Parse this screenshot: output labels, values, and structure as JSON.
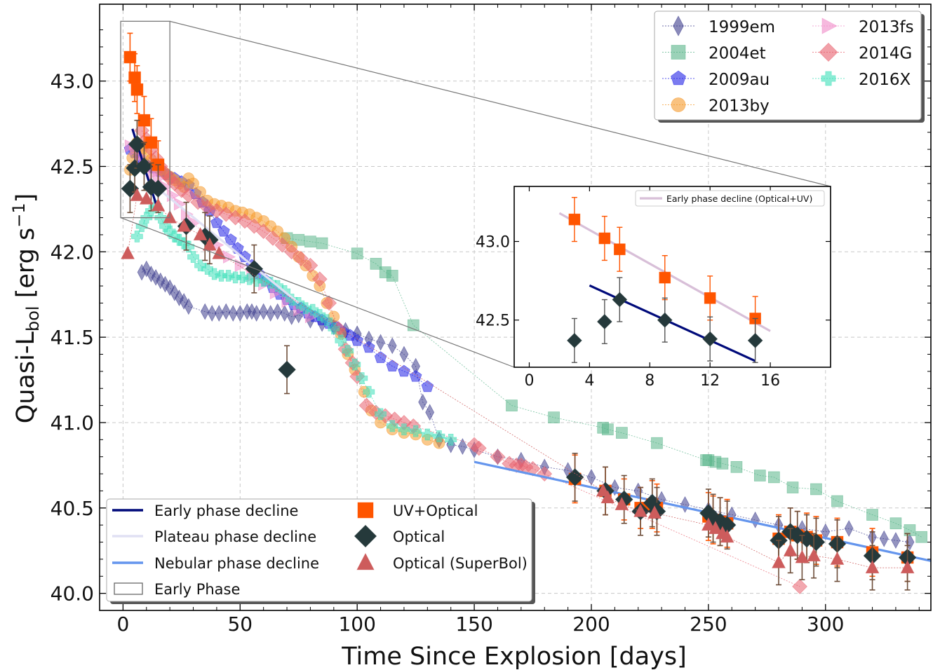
{
  "chart_data": {
    "type": "scatter",
    "xlabel": "Time Since Explosion [days]",
    "ylabel_main": "Quasi-L",
    "ylabel_sub": "bol",
    "ylabel_unit": " [erg s",
    "ylabel_exp": "−1",
    "ylabel_close": "]",
    "xlim": [
      -10,
      345
    ],
    "ylim": [
      39.9,
      43.45
    ],
    "xticks": [
      0,
      50,
      100,
      150,
      200,
      250,
      300
    ],
    "yticks": [
      40.0,
      40.5,
      41.0,
      41.5,
      42.0,
      42.5,
      43.0
    ],
    "grid": true,
    "comparison_series": [
      {
        "name": "1999em",
        "color": "#3c3c8c",
        "marker": "thin-diamond",
        "x": [
          8,
          10,
          12,
          14,
          16,
          18,
          20,
          22,
          24,
          26,
          28,
          35,
          38,
          41,
          44,
          47,
          50,
          53,
          55,
          57,
          60,
          63,
          66,
          69,
          72,
          75,
          80,
          85,
          90,
          95,
          100,
          105,
          110,
          115,
          120,
          125,
          128,
          131,
          135,
          140,
          145,
          150,
          160,
          170,
          180,
          190,
          200,
          210,
          220,
          230,
          240,
          250,
          260,
          270,
          280,
          290,
          300,
          310,
          320,
          325,
          330,
          336
        ],
        "y": [
          41.88,
          41.9,
          41.87,
          41.85,
          41.83,
          41.81,
          41.79,
          41.76,
          41.73,
          41.71,
          41.68,
          41.65,
          41.64,
          41.64,
          41.65,
          41.64,
          41.64,
          41.65,
          41.65,
          41.64,
          41.65,
          41.64,
          41.65,
          41.64,
          41.62,
          41.63,
          41.6,
          41.58,
          41.56,
          41.54,
          41.52,
          41.49,
          41.47,
          41.45,
          41.4,
          41.33,
          41.12,
          41.06,
          40.9,
          40.87,
          40.86,
          40.84,
          40.8,
          40.78,
          40.74,
          40.72,
          40.68,
          40.62,
          40.6,
          40.55,
          40.52,
          40.49,
          40.46,
          40.43,
          40.4,
          40.38,
          40.36,
          40.38,
          40.33,
          40.32,
          40.31,
          40.3
        ]
      },
      {
        "name": "2004et",
        "color": "#58b489",
        "marker": "square",
        "x": [
          70,
          75,
          80,
          85,
          100,
          108,
          112,
          115,
          124,
          166,
          184,
          205,
          207,
          213,
          228,
          249,
          250,
          253,
          256,
          262,
          272,
          278,
          286,
          296,
          305,
          320,
          330,
          336,
          341
        ],
        "y": [
          42.08,
          42.07,
          42.06,
          42.05,
          41.99,
          41.93,
          41.88,
          41.86,
          41.57,
          41.1,
          41.03,
          40.97,
          40.96,
          40.94,
          40.88,
          40.78,
          40.78,
          40.77,
          40.76,
          40.74,
          40.69,
          40.68,
          40.62,
          40.61,
          40.54,
          40.46,
          40.41,
          40.37,
          40.33
        ]
      },
      {
        "name": "2009au",
        "color": "#2323e6",
        "marker": "pentagon",
        "x": [
          3,
          5,
          7,
          9,
          11,
          13,
          16,
          19,
          22,
          25,
          28,
          31,
          34,
          37,
          40,
          43,
          46,
          49,
          52,
          55,
          58,
          61,
          64,
          67,
          70,
          73,
          76,
          79,
          82,
          85,
          88,
          91,
          94,
          97,
          100,
          105,
          110,
          115,
          120,
          125,
          130
        ],
        "y": [
          42.6,
          42.58,
          42.55,
          42.52,
          42.5,
          42.49,
          42.47,
          42.45,
          42.43,
          42.41,
          42.39,
          42.34,
          42.29,
          42.24,
          42.17,
          42.12,
          42.07,
          42.02,
          41.97,
          41.92,
          41.87,
          41.83,
          41.79,
          41.75,
          41.72,
          41.69,
          41.67,
          41.64,
          41.62,
          41.6,
          41.58,
          41.56,
          41.53,
          41.51,
          41.48,
          41.44,
          41.38,
          41.33,
          41.3,
          41.27,
          41.21
        ]
      },
      {
        "name": "2013by",
        "color": "#f59a2b",
        "marker": "circle",
        "x": [
          3,
          4,
          5,
          6,
          7,
          8,
          10,
          12,
          14,
          16,
          18,
          20,
          22,
          24,
          26,
          28,
          30,
          33,
          36,
          39,
          42,
          45,
          48,
          51,
          54,
          57,
          60,
          63,
          66,
          69,
          72,
          75,
          78,
          81,
          84,
          87,
          90,
          93,
          96,
          99,
          103,
          106,
          110,
          115,
          120,
          125,
          130,
          135
        ],
        "y": [
          42.48,
          42.55,
          42.61,
          42.64,
          42.62,
          42.6,
          42.57,
          42.54,
          42.5,
          42.48,
          42.46,
          42.44,
          42.42,
          42.4,
          42.38,
          42.43,
          42.4,
          42.35,
          42.3,
          42.28,
          42.27,
          42.26,
          42.24,
          42.23,
          42.22,
          42.2,
          42.18,
          42.15,
          42.12,
          42.08,
          42.03,
          41.97,
          41.92,
          41.86,
          41.8,
          41.7,
          41.62,
          41.52,
          41.4,
          41.31,
          41.18,
          41.07,
          41.0,
          40.96,
          40.94,
          40.93,
          40.9,
          40.88
        ]
      },
      {
        "name": "2013fs",
        "color": "#f08ac8",
        "marker": "triangle-right",
        "x": [
          3,
          5,
          7,
          9,
          11,
          13,
          15,
          18,
          21,
          24,
          27,
          30,
          35,
          40,
          45,
          50,
          55,
          60,
          65,
          70,
          75,
          80
        ],
        "y": [
          42.62,
          42.6,
          42.56,
          42.52,
          42.49,
          42.46,
          42.43,
          42.38,
          42.33,
          42.28,
          42.22,
          42.17,
          42.1,
          42.04,
          41.97,
          41.92,
          41.86,
          41.81,
          41.76,
          41.71,
          41.66,
          41.62
        ]
      },
      {
        "name": "2014G",
        "color": "#e8606e",
        "marker": "diamond",
        "x": [
          8,
          10,
          12,
          14,
          16,
          18,
          20,
          22,
          25,
          28,
          32,
          36,
          40,
          44,
          48,
          52,
          56,
          60,
          64,
          68,
          72,
          76,
          80,
          84,
          88,
          92,
          95,
          98,
          100,
          104,
          108,
          112,
          116,
          120,
          124,
          150,
          152,
          160,
          165,
          168,
          170,
          172,
          175,
          180,
          289
        ],
        "y": [
          42.71,
          42.66,
          42.6,
          42.55,
          42.5,
          42.46,
          42.43,
          42.4,
          42.36,
          42.33,
          42.29,
          42.26,
          42.24,
          42.22,
          42.2,
          42.18,
          42.15,
          42.12,
          42.08,
          42.04,
          42.0,
          41.96,
          41.92,
          41.84,
          41.7,
          41.55,
          41.43,
          41.35,
          41.27,
          41.1,
          41.06,
          41.04,
          41.02,
          41.0,
          40.98,
          40.87,
          40.85,
          40.8,
          40.76,
          40.75,
          40.75,
          40.74,
          40.73,
          40.7,
          40.04
        ]
      },
      {
        "name": "2016X",
        "color": "#3ee0b9",
        "marker": "plus",
        "x": [
          6,
          8,
          10,
          12,
          14,
          16,
          18,
          20,
          22,
          24,
          26,
          28,
          30,
          33,
          36,
          39,
          42,
          45,
          48,
          51,
          54,
          57,
          60,
          63,
          66,
          69,
          72,
          75,
          78,
          81,
          84,
          87,
          90,
          93,
          96,
          99,
          102,
          105,
          110,
          115,
          120,
          125,
          130,
          135,
          140
        ],
        "y": [
          42.09,
          42.15,
          42.2,
          42.24,
          42.27,
          42.2,
          42.15,
          42.12,
          42.09,
          42.07,
          42.05,
          42.03,
          41.97,
          41.92,
          41.9,
          41.87,
          41.86,
          41.86,
          41.85,
          41.85,
          41.84,
          41.83,
          41.83,
          41.82,
          41.8,
          41.77,
          41.72,
          41.7,
          41.67,
          41.66,
          41.63,
          41.6,
          41.55,
          41.48,
          41.42,
          41.34,
          41.26,
          41.18,
          41.05,
          40.98,
          40.96,
          40.95,
          40.93,
          40.92,
          40.9
        ]
      }
    ],
    "sn_series": [
      {
        "name": "UV+Optical",
        "color": "#ff5500",
        "marker": "square",
        "x": [
          3,
          5,
          6,
          9,
          12,
          15,
          193,
          206,
          214,
          221,
          226,
          228,
          250,
          252,
          255,
          258,
          280,
          285,
          288,
          292,
          296,
          305,
          320,
          335
        ],
        "y": [
          43.14,
          43.02,
          42.95,
          42.77,
          42.64,
          42.51,
          40.67,
          40.6,
          40.55,
          40.5,
          40.52,
          40.5,
          40.45,
          40.43,
          40.42,
          40.41,
          40.32,
          40.36,
          40.34,
          40.33,
          40.31,
          40.3,
          40.24,
          40.21
        ],
        "err": [
          0.14,
          0.14,
          0.14,
          0.14,
          0.14,
          0.14,
          0.14,
          0.14,
          0.12,
          0.12,
          0.14,
          0.14,
          0.14,
          0.14,
          0.14,
          0.14,
          0.14,
          0.14,
          0.14,
          0.14,
          0.14,
          0.14,
          0.14,
          0.14
        ]
      },
      {
        "name": "Optical",
        "color": "#25393b",
        "marker": "diamond",
        "x": [
          3,
          5,
          6,
          9,
          12,
          15,
          27,
          35,
          37,
          56,
          70,
          193,
          206,
          214,
          221,
          226,
          228,
          250,
          252,
          255,
          258,
          280,
          285,
          288,
          292,
          296,
          305,
          320,
          335
        ],
        "y": [
          42.37,
          42.49,
          42.63,
          42.5,
          42.38,
          42.37,
          42.15,
          42.09,
          42.07,
          41.9,
          41.31,
          40.68,
          40.6,
          40.55,
          40.48,
          40.53,
          40.48,
          40.47,
          40.44,
          40.42,
          40.4,
          40.31,
          40.36,
          40.34,
          40.32,
          40.3,
          40.29,
          40.22,
          40.21
        ],
        "err": [
          0.14,
          0.14,
          0.14,
          0.14,
          0.14,
          0.14,
          0.14,
          0.14,
          0.14,
          0.14,
          0.14,
          0.14,
          0.14,
          0.14,
          0.14,
          0.14,
          0.14,
          0.14,
          0.14,
          0.14,
          0.14,
          0.14,
          0.14,
          0.14,
          0.14,
          0.14,
          0.14,
          0.14,
          0.14
        ]
      },
      {
        "name": "Optical (SuperBol)",
        "color": "#cd5c5c",
        "marker": "triangle",
        "x": [
          2,
          6,
          10,
          15,
          20,
          26,
          33,
          37,
          41,
          205,
          207,
          213,
          221,
          227,
          250,
          253,
          256,
          258,
          280,
          285,
          290,
          295,
          305,
          320,
          335
        ],
        "y": [
          41.99,
          42.33,
          42.31,
          42.27,
          42.2,
          42.15,
          42.1,
          42.04,
          41.99,
          40.6,
          40.56,
          40.52,
          40.48,
          40.47,
          40.4,
          40.38,
          40.35,
          40.33,
          40.18,
          40.25,
          40.21,
          40.22,
          40.2,
          40.15,
          40.15
        ],
        "err": [
          0,
          0,
          0,
          0,
          0,
          0,
          0,
          0,
          0,
          0,
          0,
          0,
          0,
          0,
          0,
          0,
          0,
          0,
          0.13,
          0.13,
          0.13,
          0.13,
          0.13,
          0.13,
          0.13
        ]
      }
    ],
    "fit_lines": [
      {
        "name": "Early phase decline",
        "color": "#000a7a",
        "x": [
          4,
          15
        ],
        "y": [
          42.72,
          42.24
        ]
      },
      {
        "name": "Plateau phase decline",
        "color": "#e0e0f4",
        "x": [
          15,
          75
        ],
        "y": [
          42.37,
          41.7
        ]
      },
      {
        "name": "Nebular phase decline",
        "color": "#6495ed",
        "x": [
          150,
          345
        ],
        "y": [
          40.77,
          40.19
        ]
      }
    ],
    "legend_top": [
      "1999em",
      "2013fs",
      "2004et",
      "2014G",
      "2009au",
      "2016X",
      "2013by"
    ],
    "legend_bottom": {
      "early": "Early phase decline",
      "plateau": "Plateau phase decline",
      "nebular": "Nebular phase decline",
      "box": "Early Phase",
      "uvopt": "UV+Optical",
      "opt": "Optical",
      "superbol": "Optical (SuperBol)"
    },
    "inset": {
      "xlim": [
        -1,
        20
      ],
      "ylim": [
        42.2,
        43.35
      ],
      "xticks": [
        0,
        4,
        8,
        12,
        16
      ],
      "yticks": [
        42.5,
        43.0
      ],
      "legend": "Early phase decline (Optical+UV)",
      "line_uv": {
        "color": "#d8bfd8",
        "x": [
          2,
          16
        ],
        "y": [
          43.18,
          42.43
        ]
      },
      "line_opt": {
        "color": "#000a7a",
        "x": [
          4,
          15
        ],
        "y": [
          42.72,
          42.24
        ]
      },
      "zoom_region": {
        "x": [
          -1,
          20
        ],
        "y": [
          42.2,
          43.35
        ]
      }
    }
  }
}
